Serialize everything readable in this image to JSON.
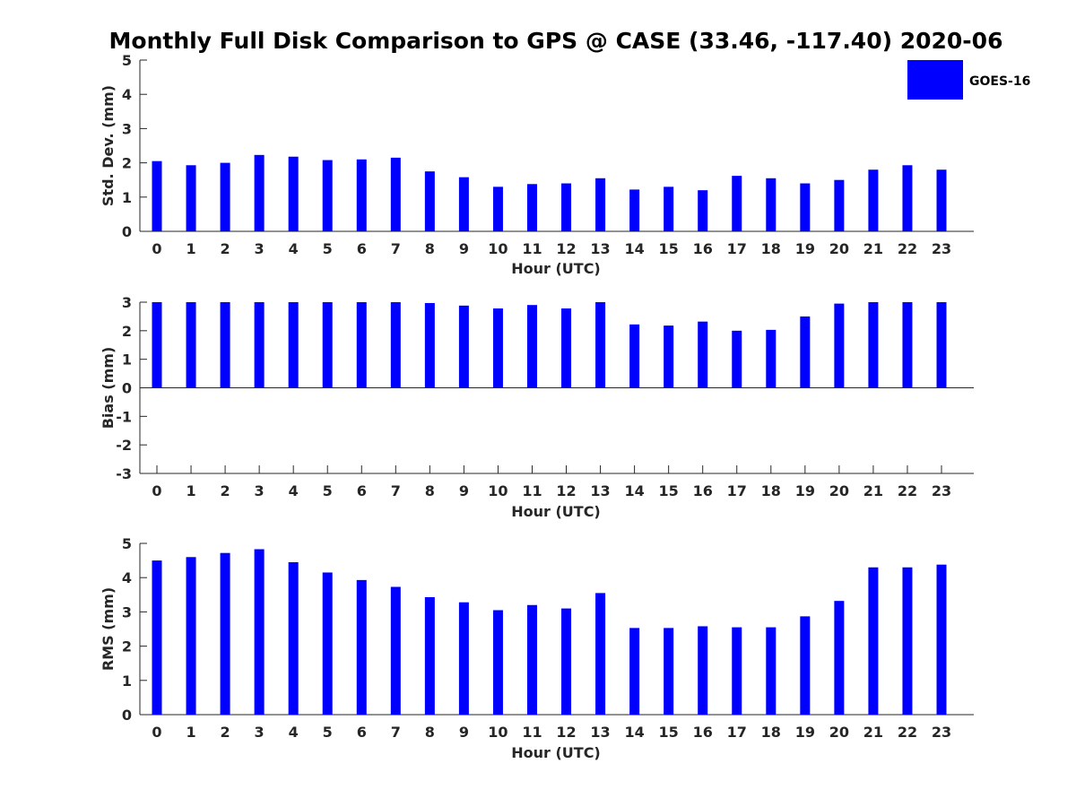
{
  "chart_data": {
    "title": "Monthly Full Disk Comparison to GPS @ CASE (33.46, -117.40) 2020-06",
    "legend": {
      "label": "GOES-16",
      "color": "#0000ff",
      "placement": "top-right"
    },
    "panels": [
      {
        "type": "bar",
        "xlabel": "Hour (UTC)",
        "ylabel": "Std. Dev. (mm)",
        "ylim": [
          0,
          5
        ],
        "yticks": [
          0,
          1,
          2,
          3,
          4,
          5
        ],
        "categories": [
          "0",
          "1",
          "2",
          "3",
          "4",
          "5",
          "6",
          "7",
          "8",
          "9",
          "10",
          "11",
          "12",
          "13",
          "14",
          "15",
          "16",
          "17",
          "18",
          "19",
          "20",
          "21",
          "22",
          "23"
        ],
        "series": [
          {
            "name": "GOES-16",
            "color": "#0000ff",
            "values": [
              2.05,
              1.93,
              2.0,
              2.23,
              2.18,
              2.08,
              2.1,
              2.15,
              1.75,
              1.58,
              1.3,
              1.38,
              1.4,
              1.55,
              1.22,
              1.3,
              1.2,
              1.62,
              1.55,
              1.4,
              1.5,
              1.8,
              1.93,
              1.8
            ]
          }
        ]
      },
      {
        "type": "bar",
        "xlabel": "Hour (UTC)",
        "ylabel": "Bias (mm)",
        "ylim": [
          -3,
          3
        ],
        "yticks": [
          -3,
          -2,
          -1,
          0,
          1,
          2,
          3
        ],
        "categories": [
          "0",
          "1",
          "2",
          "3",
          "4",
          "5",
          "6",
          "7",
          "8",
          "9",
          "10",
          "11",
          "12",
          "13",
          "14",
          "15",
          "16",
          "17",
          "18",
          "19",
          "20",
          "21",
          "22",
          "23"
        ],
        "series": [
          {
            "name": "GOES-16",
            "color": "#0000ff",
            "values": [
              3.0,
              3.0,
              3.0,
              3.0,
              3.0,
              3.0,
              3.0,
              3.0,
              2.97,
              2.88,
              2.78,
              2.9,
              2.78,
              3.0,
              2.22,
              2.18,
              2.32,
              2.0,
              2.03,
              2.5,
              2.95,
              3.0,
              3.0,
              3.0
            ]
          }
        ]
      },
      {
        "type": "bar",
        "xlabel": "Hour (UTC)",
        "ylabel": "RMS (mm)",
        "ylim": [
          0,
          5
        ],
        "yticks": [
          0,
          1,
          2,
          3,
          4,
          5
        ],
        "categories": [
          "0",
          "1",
          "2",
          "3",
          "4",
          "5",
          "6",
          "7",
          "8",
          "9",
          "10",
          "11",
          "12",
          "13",
          "14",
          "15",
          "16",
          "17",
          "18",
          "19",
          "20",
          "21",
          "22",
          "23"
        ],
        "series": [
          {
            "name": "GOES-16",
            "color": "#0000ff",
            "values": [
              4.5,
              4.6,
              4.72,
              4.83,
              4.45,
              4.15,
              3.93,
              3.73,
              3.43,
              3.28,
              3.05,
              3.2,
              3.1,
              3.55,
              2.53,
              2.53,
              2.58,
              2.55,
              2.55,
              2.87,
              3.32,
              4.3,
              4.3,
              4.38
            ]
          }
        ]
      }
    ]
  }
}
